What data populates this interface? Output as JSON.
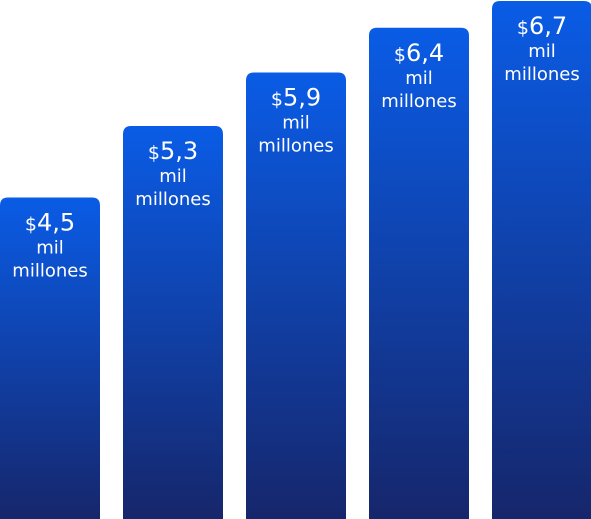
{
  "chart_data": {
    "type": "bar",
    "values": [
      4.5,
      5.3,
      5.9,
      6.4,
      6.7
    ],
    "value_labels": [
      "4,5",
      "5,3",
      "5,9",
      "6,4",
      "6,7"
    ],
    "currency_symbol": "$",
    "unit_line1": "mil",
    "unit_line2": "millones",
    "ylim": [
      0,
      6.7
    ],
    "grid": false,
    "legend": "none",
    "colors": {
      "bar_top": "#0a5ce6",
      "bar_bottom": "#16266b",
      "label_text": "#ffffff"
    }
  }
}
